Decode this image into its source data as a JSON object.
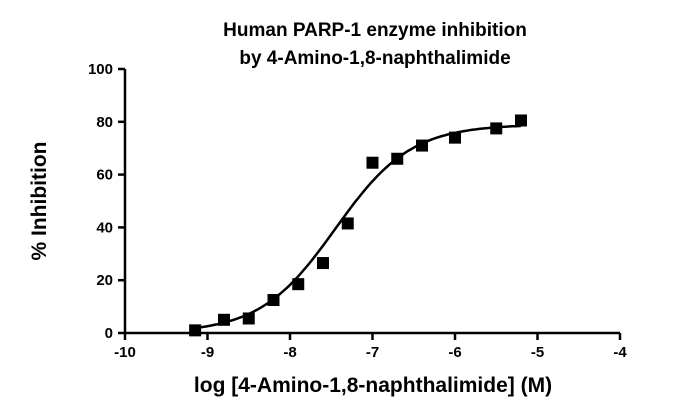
{
  "chart_data": {
    "type": "scatter",
    "title_lines": [
      "Human PARP-1 enzyme inhibition",
      "by 4-Amino-1,8-naphthalimide"
    ],
    "xlabel": "log [4-Amino-1,8-naphthalimide] (M)",
    "ylabel": "% Inhibition",
    "xlim": [
      -10,
      -4
    ],
    "ylim": [
      0,
      100
    ],
    "xticks": [
      -10,
      -9,
      -8,
      -7,
      -6,
      -5,
      -4
    ],
    "yticks": [
      0,
      20,
      40,
      60,
      80,
      100
    ],
    "grid": false,
    "series": [
      {
        "marker": "square",
        "color": "#000000",
        "x": [
          -9.15,
          -8.8,
          -8.5,
          -8.2,
          -7.9,
          -7.6,
          -7.3,
          -7.0,
          -6.7,
          -6.4,
          -6.0,
          -5.5,
          -5.2
        ],
        "y": [
          1,
          5,
          5.5,
          12.5,
          18.5,
          26.5,
          41.5,
          64.5,
          66,
          71,
          74,
          77.5,
          80.5
        ]
      }
    ],
    "fit_curve": {
      "model": "sigmoidal dose-response",
      "bottom": 0,
      "top": 79,
      "log_ec50": -7.45,
      "hill_slope": 0.95,
      "x_range": [
        -9.15,
        -5.2
      ],
      "color": "#000000"
    }
  }
}
